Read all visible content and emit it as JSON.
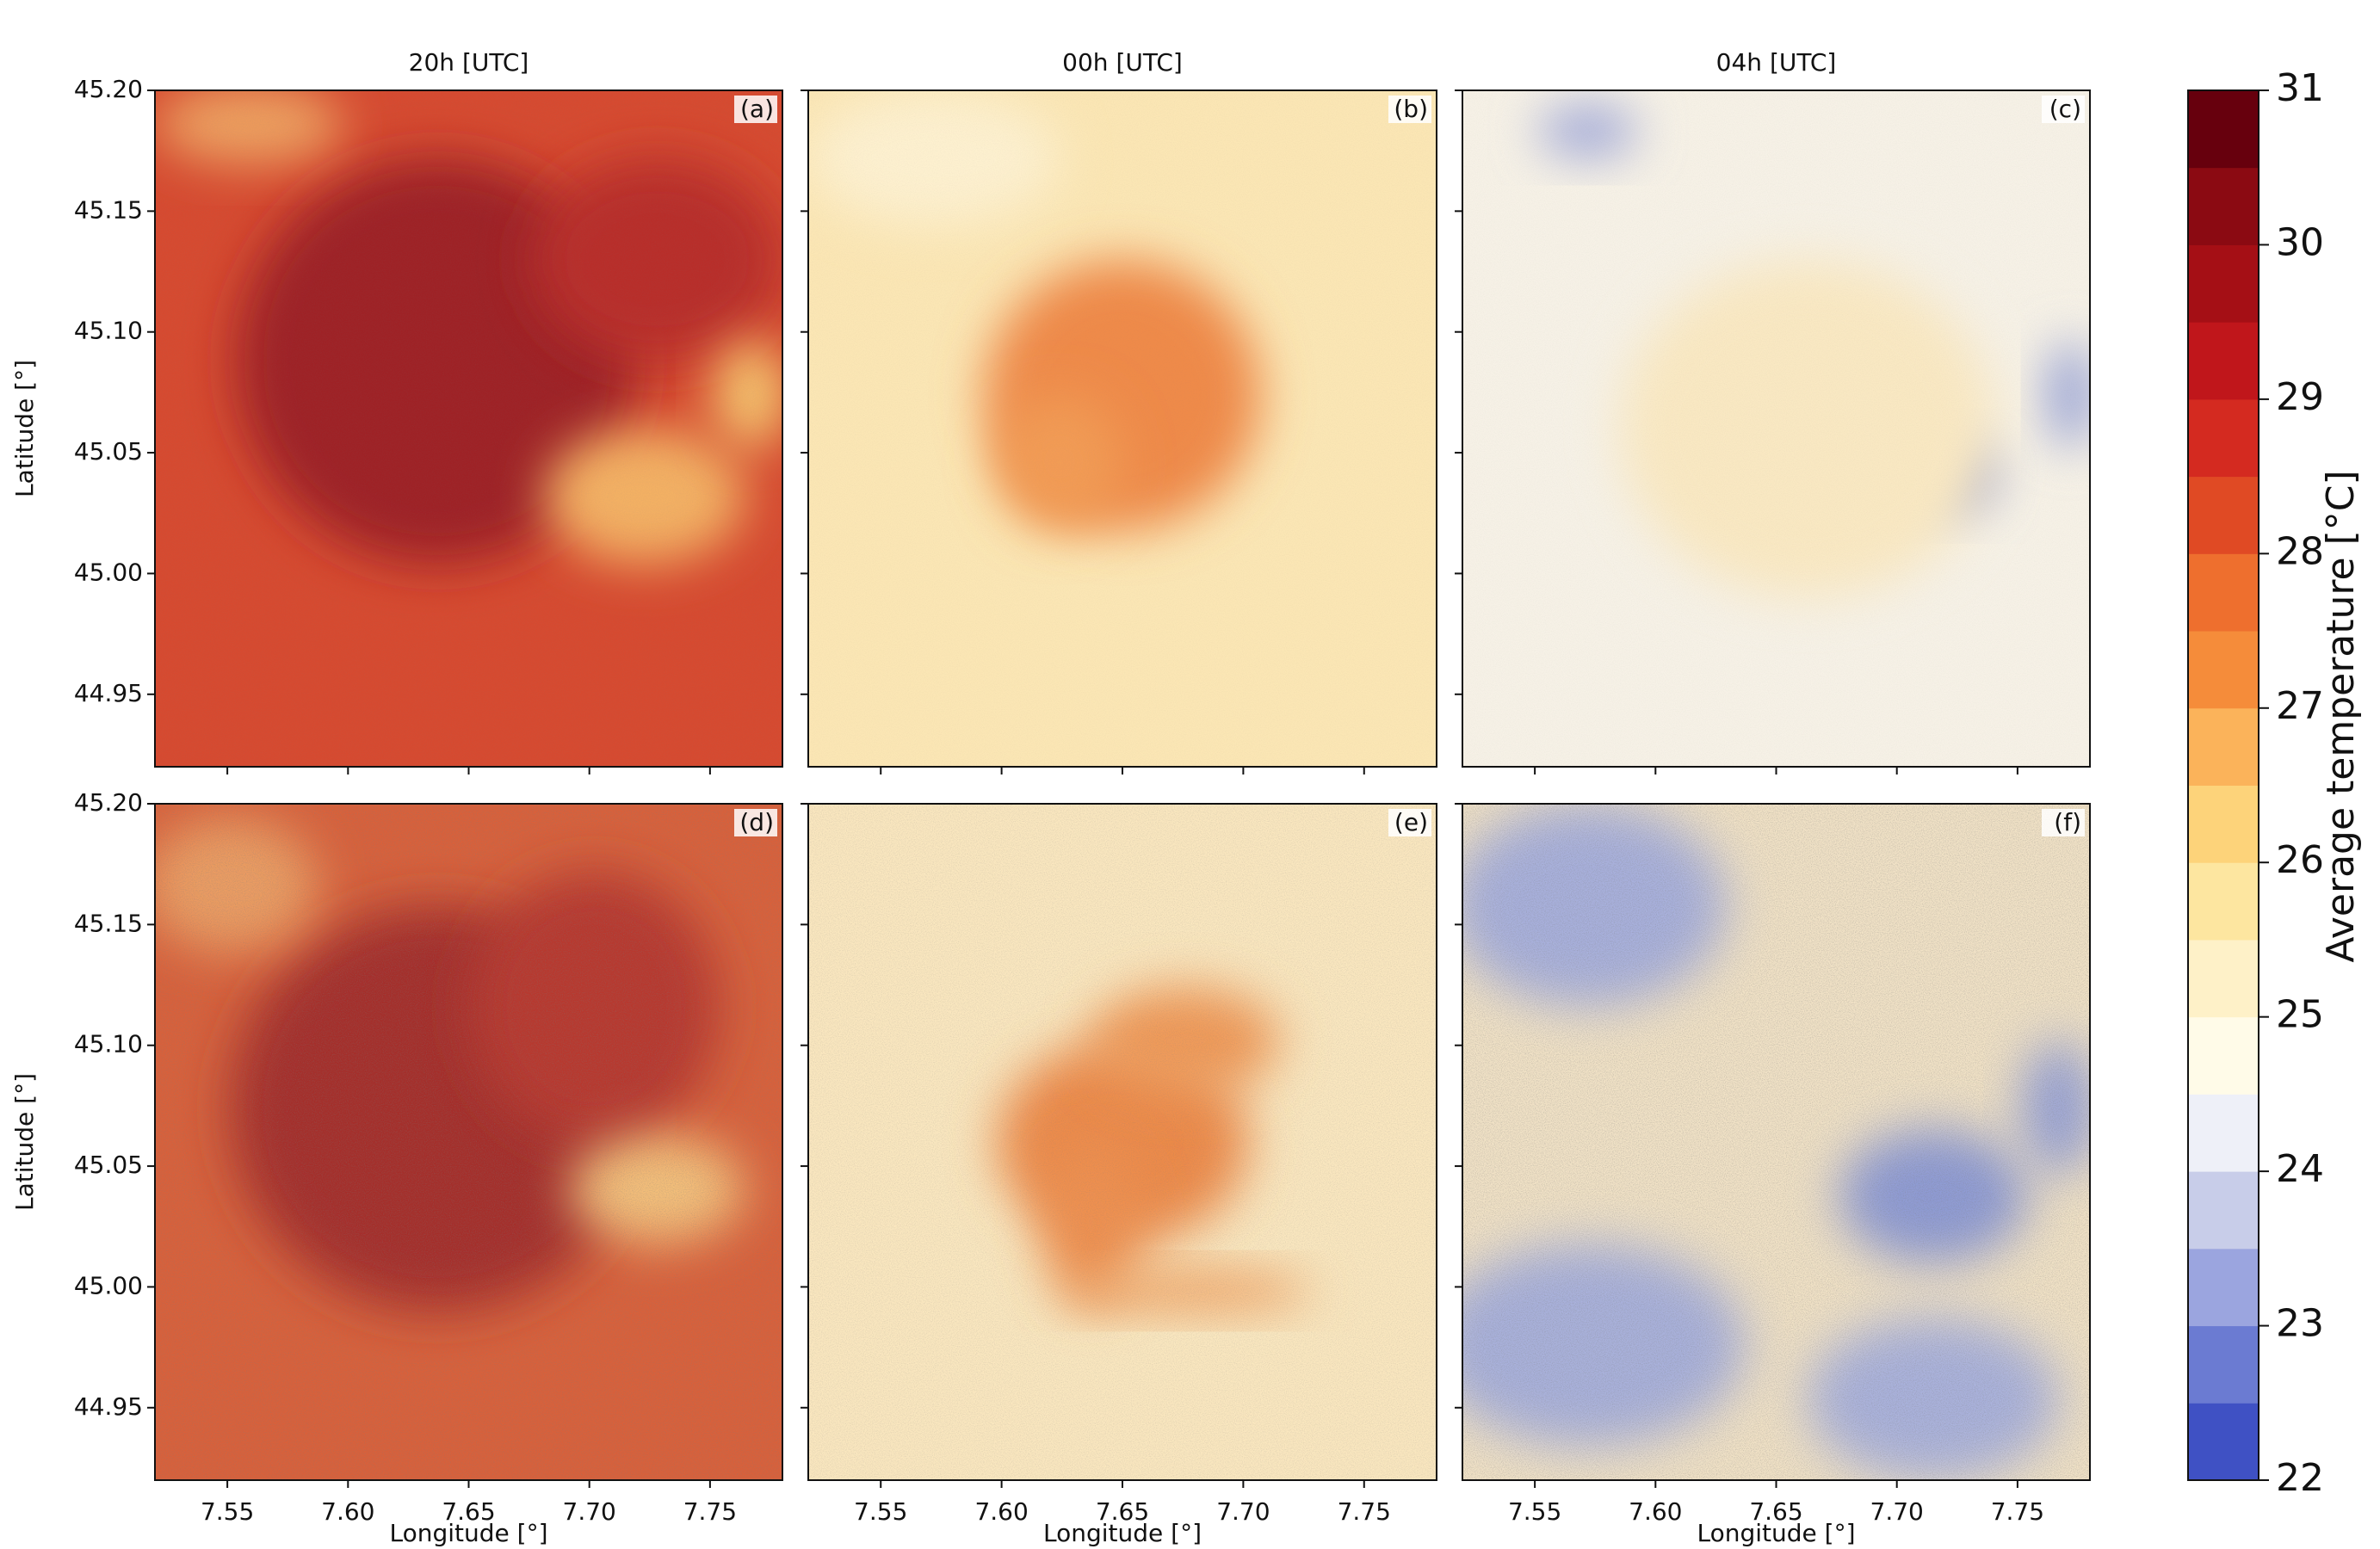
{
  "chart_data": [
    {
      "type": "map",
      "title": "20h [UTC]",
      "label": "(a)",
      "ylabel": "Latitude [°]",
      "xlim": [
        7.52,
        7.78
      ],
      "xticks": [
        7.55,
        {
          "value": 7.6,
          "label": "7.60"
        },
        7.65,
        {
          "value": 7.7,
          "label": "7.70"
        },
        7.75
      ],
      "ylim": [
        44.92,
        45.2
      ],
      "yticks": [
        {
          "value": 45.2,
          "label": "45.20"
        },
        45.15,
        {
          "value": 45.1,
          "label": "45.10"
        },
        45.05,
        {
          "value": 45.0,
          "label": "45.00"
        },
        44.95
      ]
    },
    {
      "type": "map",
      "title": "00h [UTC]",
      "label": "(b)",
      "xlim": [
        7.52,
        7.78
      ],
      "xticks": [
        7.55,
        7.6,
        7.65,
        7.7,
        7.75
      ],
      "ylim": [
        44.92,
        45.2
      ],
      "yticks": [
        45.2,
        45.15,
        45.1,
        45.05,
        45.0,
        44.95
      ]
    },
    {
      "type": "map",
      "title": "04h [UTC]",
      "label": "(c)",
      "xlim": [
        7.52,
        7.78
      ],
      "xticks": [
        7.55,
        7.6,
        7.65,
        7.7,
        7.75
      ],
      "ylim": [
        44.92,
        45.2
      ],
      "yticks": [
        45.2,
        45.15,
        45.1,
        45.05,
        45.0,
        44.95
      ]
    },
    {
      "type": "map",
      "label": "(d)",
      "ylabel": "Latitude [°]",
      "xlabel": "Longitude [°]",
      "xlim": [
        7.52,
        7.78
      ],
      "xticks": [
        7.55,
        {
          "value": 7.6,
          "label": "7.60"
        },
        7.65,
        {
          "value": 7.7,
          "label": "7.70"
        },
        7.75
      ],
      "ylim": [
        44.92,
        45.2
      ],
      "yticks": [
        {
          "value": 45.2,
          "label": "45.20"
        },
        45.15,
        {
          "value": 45.1,
          "label": "45.10"
        },
        45.05,
        {
          "value": 45.0,
          "label": "45.00"
        },
        44.95
      ]
    },
    {
      "type": "map",
      "label": "(e)",
      "xlabel": "Longitude [°]",
      "xlim": [
        7.52,
        7.78
      ],
      "xticks": [
        7.55,
        {
          "value": 7.6,
          "label": "7.60"
        },
        7.65,
        {
          "value": 7.7,
          "label": "7.70"
        },
        7.75
      ],
      "ylim": [
        44.92,
        45.2
      ],
      "yticks": [
        45.2,
        45.15,
        45.1,
        45.05,
        45.0,
        44.95
      ]
    },
    {
      "type": "map",
      "label": "(f)",
      "xlabel": "Longitude [°]",
      "xlim": [
        7.52,
        7.78
      ],
      "xticks": [
        7.55,
        {
          "value": 7.6,
          "label": "7.60"
        },
        7.65,
        {
          "value": 7.7,
          "label": "7.70"
        },
        7.75
      ],
      "ylim": [
        44.92,
        45.2
      ],
      "yticks": [
        45.2,
        45.15,
        45.1,
        45.05,
        45.0,
        44.95
      ]
    },
    {
      "type": "colorbar",
      "ylabel": "Average temperature [°C]",
      "ylim": [
        22,
        31
      ],
      "yticks": [
        22,
        23,
        24,
        25,
        26,
        27,
        28,
        29,
        30,
        31
      ],
      "colors": [
        "#3f51c4",
        "#6b7bd2",
        "#9ba5df",
        "#c8cde9",
        "#eef0f8",
        "#fffbe8",
        "#fef1c8",
        "#fde6a0",
        "#fdd37a",
        "#fbb35a",
        "#f58c3a",
        "#ee6f2e",
        "#e04a24",
        "#d42a20",
        "#c0161b",
        "#a50f15",
        "#8b0a12",
        "#67000d"
      ]
    }
  ]
}
